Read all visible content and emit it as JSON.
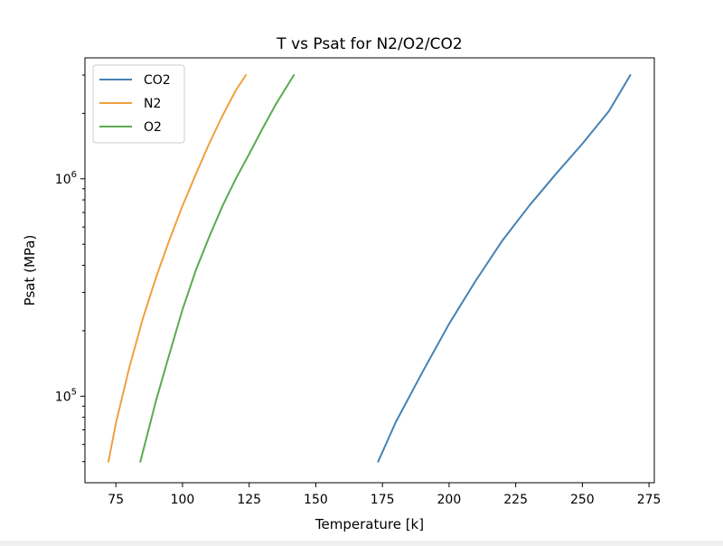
{
  "chart_data": {
    "type": "line",
    "title": "T vs Psat for N2/O2/CO2",
    "xlabel": "Temperature [k]",
    "ylabel": "Psat (MPa)",
    "xlim": [
      63.4,
      277
    ],
    "ylim": [
      40000,
      3600000
    ],
    "yscale": "log",
    "grid": false,
    "legend": "top-left",
    "x_ticks": [
      75,
      100,
      125,
      150,
      175,
      200,
      225,
      250,
      275
    ],
    "y_major_ticks": [
      {
        "value": 100000,
        "base": "10",
        "exp": "5"
      },
      {
        "value": 1000000,
        "base": "10",
        "exp": "6"
      }
    ],
    "y_minor_ticks": [
      50000,
      60000,
      70000,
      80000,
      90000,
      200000,
      300000,
      400000,
      500000,
      600000,
      700000,
      800000,
      900000,
      2000000,
      3000000
    ],
    "series": [
      {
        "name": "CO2",
        "color": "#4682b4",
        "x": [
          173.4,
          180,
          190,
          200,
          210,
          220,
          230,
          240,
          250,
          260,
          268
        ],
        "y": [
          50000,
          76000,
          129000,
          215000,
          340000,
          520000,
          750000,
          1050000,
          1450000,
          2050000,
          3000000
        ]
      },
      {
        "name": "N2",
        "color": "#f0a040",
        "x": [
          72.2,
          75,
          80,
          85,
          90,
          95,
          100,
          105,
          110,
          115,
          120,
          123.8
        ],
        "y": [
          50000,
          75000,
          135000,
          225000,
          350000,
          520000,
          750000,
          1050000,
          1450000,
          1950000,
          2550000,
          3000000
        ]
      },
      {
        "name": "O2",
        "color": "#5aaa50",
        "x": [
          84.2,
          90,
          95,
          100,
          105,
          110,
          115,
          120,
          125,
          130,
          135,
          141.8
        ],
        "y": [
          50000,
          95000,
          155000,
          250000,
          380000,
          540000,
          750000,
          1000000,
          1300000,
          1700000,
          2200000,
          3000000
        ]
      }
    ]
  }
}
